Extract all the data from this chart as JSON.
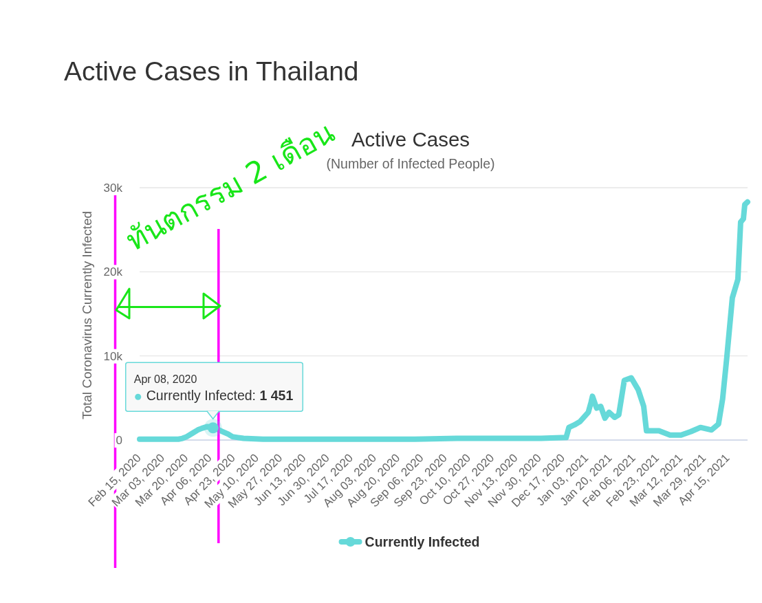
{
  "chart_data": {
    "type": "line",
    "title": "Active Cases in Thailand",
    "subtitle": "Active Cases",
    "ylabel": "Total Coronavirus Currently Infected",
    "x": [
      "2020-02-15",
      "2020-03-01",
      "2020-03-14",
      "2020-03-17",
      "2020-03-20",
      "2020-03-24",
      "2020-03-28",
      "2020-03-31",
      "2020-04-04",
      "2020-04-08",
      "2020-04-11",
      "2020-04-15",
      "2020-04-19",
      "2020-04-22",
      "2020-04-26",
      "2020-04-30",
      "2020-05-14",
      "2020-06-01",
      "2020-07-01",
      "2020-08-01",
      "2020-09-01",
      "2020-10-01",
      "2020-11-01",
      "2020-12-01",
      "2020-12-19",
      "2020-12-21",
      "2020-12-25",
      "2020-12-29",
      "2021-01-04",
      "2021-01-06",
      "2021-01-07",
      "2021-01-10",
      "2021-01-13",
      "2021-01-16",
      "2021-01-19",
      "2021-01-23",
      "2021-01-26",
      "2021-01-30",
      "2021-02-04",
      "2021-02-09",
      "2021-02-13",
      "2021-02-15",
      "2021-02-24",
      "2021-03-04",
      "2021-03-12",
      "2021-03-19",
      "2021-03-26",
      "2021-04-03",
      "2021-04-08",
      "2021-04-11",
      "2021-04-14",
      "2021-04-18",
      "2021-04-22",
      "2021-04-24",
      "2021-04-26",
      "2021-04-27",
      "2021-04-29"
    ],
    "series": [
      {
        "name": "Currently Infected",
        "color": "#66d9d9",
        "values": [
          100,
          100,
          100,
          200,
          400,
          800,
          1200,
          1400,
          1600,
          1451,
          1300,
          1000,
          700,
          400,
          300,
          200,
          100,
          100,
          100,
          100,
          100,
          200,
          200,
          200,
          300,
          1500,
          1800,
          2200,
          3300,
          4500,
          5200,
          3800,
          4000,
          2600,
          3300,
          2700,
          3000,
          7100,
          7400,
          6000,
          4000,
          1100,
          1100,
          600,
          600,
          1000,
          1500,
          1200,
          1900,
          4900,
          9800,
          16900,
          19100,
          25900,
          26300,
          28000,
          28300
        ]
      }
    ],
    "xlim": [
      "2020-02-15",
      "2021-04-29"
    ],
    "xticks": [
      {
        "value": "2020-02-15",
        "label": "Feb 15, 2020"
      },
      {
        "value": "2020-03-03",
        "label": "Mar 03, 2020"
      },
      {
        "value": "2020-03-20",
        "label": "Mar 20, 2020"
      },
      {
        "value": "2020-04-06",
        "label": "Apr 06, 2020"
      },
      {
        "value": "2020-04-23",
        "label": "Apr 23, 2020"
      },
      {
        "value": "2020-05-10",
        "label": "May 10, 2020"
      },
      {
        "value": "2020-05-27",
        "label": "May 27, 2020"
      },
      {
        "value": "2020-06-13",
        "label": "Jun 13, 2020"
      },
      {
        "value": "2020-06-30",
        "label": "Jun 30, 2020"
      },
      {
        "value": "2020-07-17",
        "label": "Jul 17, 2020"
      },
      {
        "value": "2020-08-03",
        "label": "Aug 03, 2020"
      },
      {
        "value": "2020-08-20",
        "label": "Aug 20, 2020"
      },
      {
        "value": "2020-09-06",
        "label": "Sep 06, 2020"
      },
      {
        "value": "2020-09-23",
        "label": "Sep 23, 2020"
      },
      {
        "value": "2020-10-10",
        "label": "Oct 10, 2020"
      },
      {
        "value": "2020-10-27",
        "label": "Oct 27, 2020"
      },
      {
        "value": "2020-11-13",
        "label": "Nov 13, 2020"
      },
      {
        "value": "2020-11-30",
        "label": "Nov 30, 2020"
      },
      {
        "value": "2020-12-17",
        "label": "Dec 17, 2020"
      },
      {
        "value": "2021-01-03",
        "label": "Jan 03, 2021"
      },
      {
        "value": "2021-01-20",
        "label": "Jan 20, 2021"
      },
      {
        "value": "2021-02-06",
        "label": "Feb 06, 2021"
      },
      {
        "value": "2021-02-23",
        "label": "Feb 23, 2021"
      },
      {
        "value": "2021-03-12",
        "label": "Mar 12, 2021"
      },
      {
        "value": "2021-03-29",
        "label": "Mar 29, 2021"
      },
      {
        "value": "2021-04-15",
        "label": "Apr 15, 2021"
      }
    ],
    "ylim": [
      0,
      30000
    ],
    "yticks": [
      0,
      {
        "value": 10000,
        "label": "10k"
      },
      {
        "value": 20000,
        "label": "20k"
      },
      {
        "value": 30000,
        "label": "30k"
      }
    ],
    "grid": "y",
    "legend": "bottom",
    "line_style": "solid",
    "ref_lines": [
      {
        "axis": "x",
        "value": "2020-04-12",
        "color": "#ff00ff"
      }
    ],
    "annotations": [
      "(Number of Infected People)",
      "ทันตกรรม 2 เดือน",
      {
        "text": "Apr 08, 2020\nCurrently Infected: **1 451**",
        "x": "2020-04-08",
        "y": 1451
      }
    ]
  }
}
